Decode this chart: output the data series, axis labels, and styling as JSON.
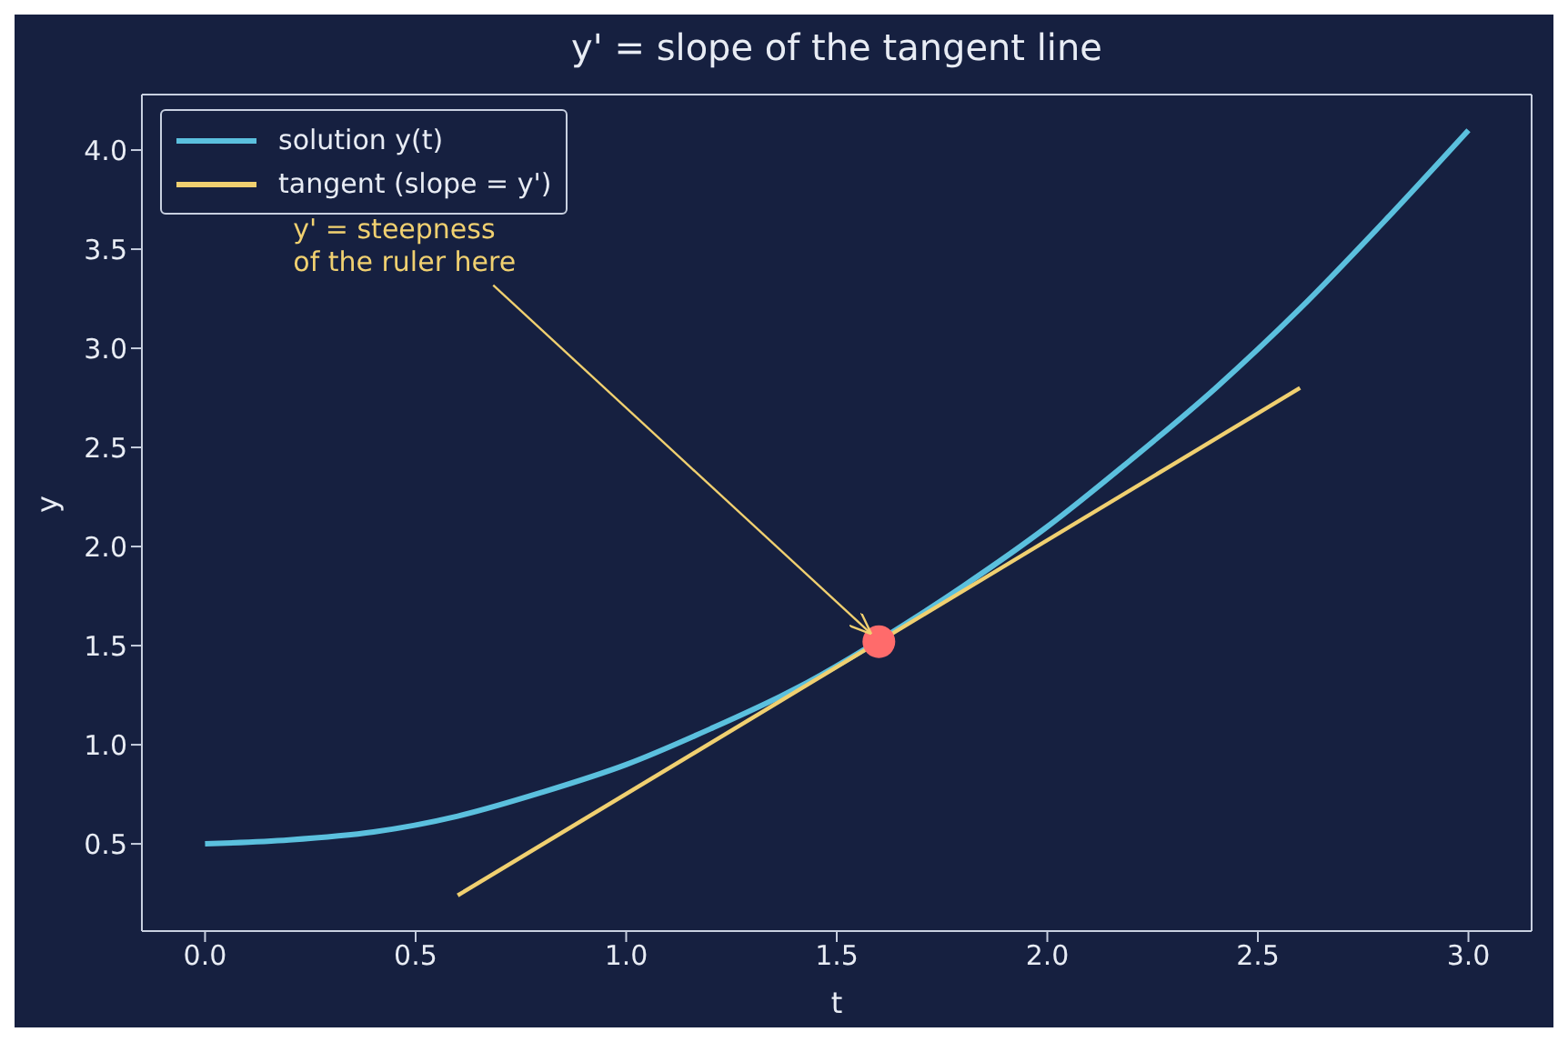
{
  "chart_data": {
    "type": "line",
    "title": "y' = slope of the tangent line",
    "xlabel": "t",
    "ylabel": "y",
    "xlim": [
      -0.15,
      3.15
    ],
    "ylim": [
      0.06,
      4.28
    ],
    "xticks": [
      {
        "value": 0,
        "label": "0.0"
      },
      {
        "value": 0.5,
        "label": "0.5"
      },
      {
        "value": 1,
        "label": "1.0"
      },
      {
        "value": 1.5,
        "label": "1.5"
      },
      {
        "value": 2,
        "label": "2.0"
      },
      {
        "value": 2.5,
        "label": "2.5"
      },
      {
        "value": 3,
        "label": "3.0"
      }
    ],
    "yticks": [
      {
        "value": 0.5,
        "label": "0.5"
      },
      {
        "value": 1,
        "label": "1.0"
      },
      {
        "value": 1.5,
        "label": "1.5"
      },
      {
        "value": 2,
        "label": "2.0"
      },
      {
        "value": 2.5,
        "label": "2.5"
      },
      {
        "value": 3,
        "label": "3.0"
      },
      {
        "value": 3.5,
        "label": "3.5"
      },
      {
        "value": 4,
        "label": "4.0"
      }
    ],
    "grid": false,
    "legend": "top left",
    "line_style": "solid",
    "series": [
      {
        "name": "solution y(t)",
        "color": "#5bc0de",
        "x": [
          0,
          0.2,
          0.4,
          0.6,
          0.8,
          1,
          1.2,
          1.4,
          1.7,
          1.8,
          2,
          2.2,
          2.4,
          2.6,
          2.8,
          3
        ],
        "values": [
          0.5,
          0.52,
          0.56,
          0.64,
          0.76,
          0.9,
          1.08,
          1.28,
          1.66,
          1.8,
          2.1,
          2.44,
          2.8,
          3.2,
          3.64,
          4.1
        ]
      },
      {
        "name": "tangent (slope = y')",
        "color": "#f0d070",
        "x": [
          0.6,
          2.6
        ],
        "values": [
          0.24,
          2.8
        ]
      },
      {
        "type": "scatter",
        "marker": "circle",
        "color": "#ff6b6b",
        "x": [
          1.6
        ],
        "values": [
          1.52
        ]
      }
    ],
    "annotations": [
      {
        "text": "y' = steepness\nof the ruler here",
        "x": 1.6,
        "y": 1.52
      }
    ]
  }
}
